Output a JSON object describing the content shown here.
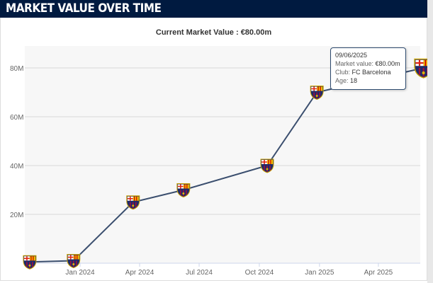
{
  "header": {
    "title": "MARKET VALUE OVER TIME"
  },
  "subtitle": "Current Market Value : €80.00m",
  "colors": {
    "header_bg": "#001a40",
    "line": "#3a4e6e",
    "plot_bg": "#f7f7f7"
  },
  "tooltip": {
    "date": "09/06/2025",
    "mv_label": "Market value: ",
    "mv": "€80.00m",
    "club_label": "Club: ",
    "club": "FC Barcelona",
    "age_label": "Age: ",
    "age": "18"
  },
  "chart_data": {
    "type": "line",
    "marker": "fc-barcelona-crest-icon",
    "x_ticks": [
      "Jan 2024",
      "Apr 2024",
      "Jul 2024",
      "Oct 2024",
      "Jan 2025",
      "Apr 2025"
    ],
    "y_ticks": [
      "20M",
      "40M",
      "60M",
      "80M"
    ],
    "ylim": [
      0,
      85
    ],
    "grid": true,
    "points": [
      {
        "date": "2023-10-16",
        "value": 0.5
      },
      {
        "date": "2023-12-22",
        "value": 1
      },
      {
        "date": "2024-03-22",
        "value": 25
      },
      {
        "date": "2024-06-07",
        "value": 30
      },
      {
        "date": "2024-10-13",
        "value": 40
      },
      {
        "date": "2024-12-28",
        "value": 70
      },
      {
        "date": "2025-06-09",
        "value": 80
      }
    ]
  }
}
